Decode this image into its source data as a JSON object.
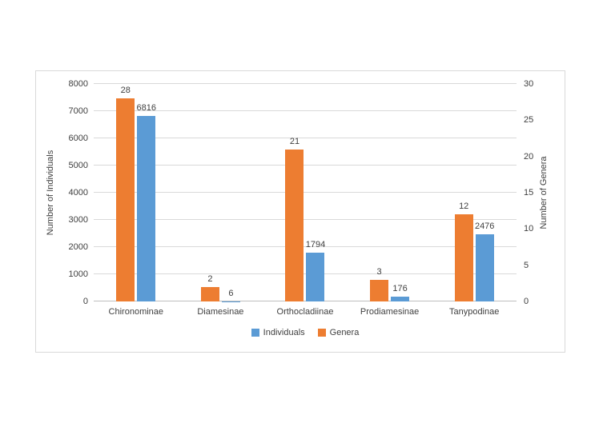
{
  "chart_data": {
    "type": "bar",
    "title": "",
    "categories": [
      "Chironominae",
      "Diamesinae",
      "Orthocladiinae",
      "Prodiamesinae",
      "Tanypodinae"
    ],
    "series": [
      {
        "name": "Genera",
        "axis": "right",
        "color": "#ED7D31",
        "values": [
          28,
          2,
          21,
          3,
          12
        ]
      },
      {
        "name": "Individuals",
        "axis": "left",
        "color": "#5B9BD5",
        "values": [
          6816,
          6,
          1794,
          176,
          2476
        ]
      }
    ],
    "data_labels": true,
    "left_axis": {
      "label": "Number of Individuals",
      "min": 0,
      "max": 8000,
      "ticks": [
        0,
        1000,
        2000,
        3000,
        4000,
        5000,
        6000,
        7000,
        8000
      ]
    },
    "right_axis": {
      "label": "Number of Genera",
      "min": 0,
      "max": 30,
      "ticks": [
        0,
        5,
        10,
        15,
        20,
        25,
        30
      ]
    },
    "grid": true,
    "legend_position": "bottom",
    "legend": [
      {
        "label": "Individuals",
        "color": "#5B9BD5"
      },
      {
        "label": "Genera",
        "color": "#ED7D31"
      }
    ]
  }
}
